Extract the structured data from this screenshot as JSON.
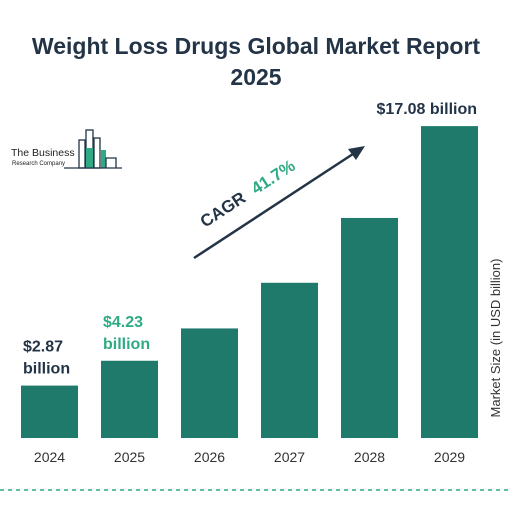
{
  "title_lines": [
    "Weight Loss Drugs Global Market Report",
    "2025"
  ],
  "logo": {
    "line1": "The Business",
    "line2": "Research Company"
  },
  "colors": {
    "bar": "#1f7a6b",
    "accent": "#2eaa84",
    "dark": "#243447",
    "dash": "#2eaa84"
  },
  "cagr": {
    "prefix": "CAGR",
    "value": "41.7%"
  },
  "chart_data": {
    "type": "bar",
    "categories": [
      "2024",
      "2025",
      "2026",
      "2027",
      "2028",
      "2029"
    ],
    "values": [
      2.87,
      4.23,
      6.0,
      8.5,
      12.05,
      17.08
    ],
    "ylabel": "Market Size (in USD billion)",
    "ylim": [
      0,
      18.4
    ],
    "value_labels": [
      {
        "index": 0,
        "lines": [
          "$2.87",
          "billion"
        ],
        "color": "#243447"
      },
      {
        "index": 1,
        "lines": [
          "$4.23",
          "billion"
        ],
        "color": "#2eaa84"
      },
      {
        "index": 5,
        "lines": [
          "$17.08 billion"
        ],
        "color": "#243447"
      }
    ]
  }
}
